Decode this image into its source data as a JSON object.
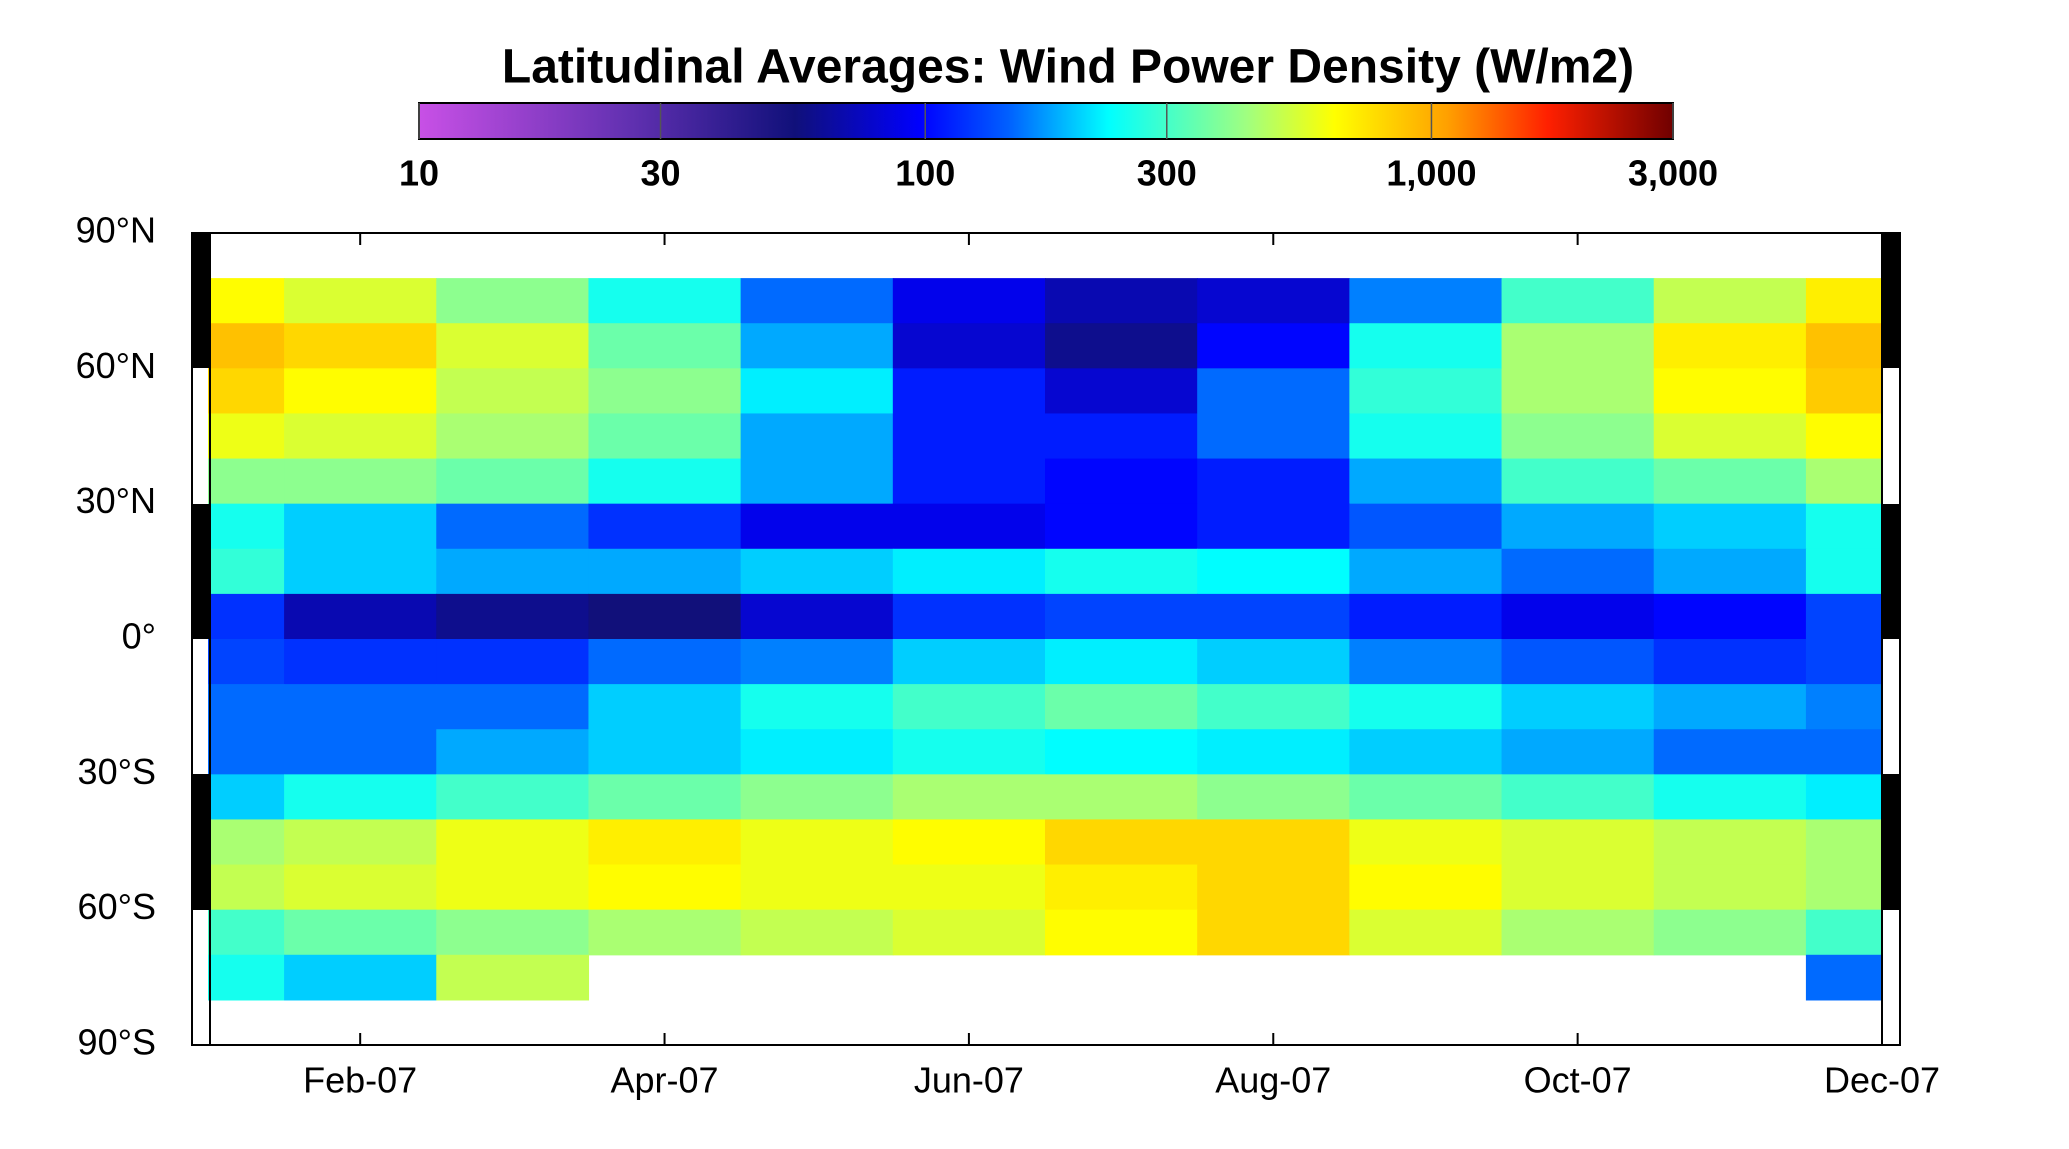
{
  "chart_data": {
    "type": "heatmap",
    "title": "Latitudinal Averages: Wind Power Density (W/m2)",
    "categories": [
      null,
      "Feb-07",
      null,
      "Apr-07",
      null,
      "Jun-07",
      null,
      "Aug-07",
      null,
      "Oct-07",
      null,
      "Dec-07"
    ],
    "y": [
      75,
      65,
      55,
      45,
      35,
      25,
      15,
      5,
      -5,
      -15,
      -25,
      -35,
      -45,
      -55,
      -65,
      -75
    ],
    "values": [
      [
        650,
        550,
        400,
        250,
        150,
        90,
        70,
        80,
        160,
        300,
        500,
        700
      ],
      [
        900,
        800,
        550,
        350,
        180,
        80,
        60,
        100,
        250,
        450,
        700,
        900
      ],
      [
        800,
        650,
        500,
        400,
        220,
        110,
        80,
        150,
        280,
        450,
        650,
        850
      ],
      [
        600,
        550,
        450,
        350,
        180,
        110,
        110,
        150,
        250,
        400,
        550,
        650
      ],
      [
        400,
        400,
        350,
        250,
        180,
        110,
        100,
        110,
        180,
        300,
        350,
        450
      ],
      [
        250,
        200,
        150,
        120,
        90,
        90,
        100,
        110,
        140,
        180,
        200,
        250
      ],
      [
        280,
        200,
        180,
        180,
        200,
        220,
        250,
        230,
        180,
        150,
        180,
        250
      ],
      [
        120,
        70,
        60,
        55,
        80,
        120,
        130,
        130,
        110,
        90,
        100,
        130
      ],
      [
        130,
        120,
        120,
        150,
        160,
        200,
        220,
        200,
        160,
        140,
        120,
        130
      ],
      [
        150,
        150,
        150,
        200,
        250,
        300,
        350,
        300,
        250,
        200,
        180,
        160
      ],
      [
        150,
        150,
        180,
        200,
        220,
        250,
        230,
        220,
        200,
        180,
        150,
        150
      ],
      [
        200,
        250,
        300,
        350,
        400,
        450,
        450,
        400,
        350,
        300,
        250,
        220
      ],
      [
        450,
        500,
        600,
        700,
        600,
        650,
        800,
        800,
        600,
        550,
        500,
        450
      ],
      [
        500,
        550,
        600,
        650,
        600,
        600,
        700,
        800,
        650,
        550,
        500,
        450
      ],
      [
        300,
        350,
        400,
        450,
        500,
        550,
        650,
        800,
        550,
        450,
        400,
        300
      ],
      [
        250,
        200,
        500,
        null,
        null,
        null,
        null,
        null,
        null,
        null,
        null,
        150
      ]
    ],
    "ylim": [
      -90,
      90
    ],
    "yticks": [
      {
        "value": 90,
        "label": "90°N"
      },
      {
        "value": 60,
        "label": "60°N"
      },
      {
        "value": 30,
        "label": "30°N"
      },
      {
        "value": 0,
        "label": "0°"
      },
      {
        "value": -30,
        "label": "30°S"
      },
      {
        "value": -60,
        "label": "60°S"
      },
      {
        "value": -90,
        "label": "90°S"
      }
    ],
    "clim": [
      10,
      3000
    ],
    "clog": true,
    "cticks": [
      10,
      30,
      100,
      300,
      {
        "value": 1000,
        "label": "1,000"
      },
      {
        "value": 3000,
        "label": "3,000"
      }
    ],
    "colorscale": [
      [
        0,
        "#c850e6"
      ],
      [
        0.17,
        "#6030b0"
      ],
      [
        0.3,
        "#10107a"
      ],
      [
        0.4,
        "#0000ff"
      ],
      [
        0.47,
        "#0060ff"
      ],
      [
        0.55,
        "#00ffff"
      ],
      [
        0.66,
        "#a0ff80"
      ],
      [
        0.73,
        "#ffff00"
      ],
      [
        0.82,
        "#ffa000"
      ],
      [
        0.9,
        "#ff2000"
      ],
      [
        1,
        "#700000"
      ]
    ]
  }
}
